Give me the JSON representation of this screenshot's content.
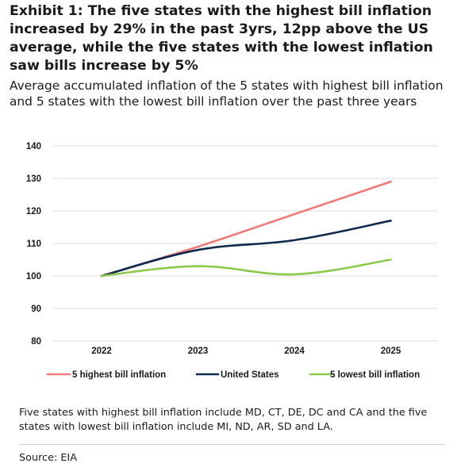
{
  "title": "Exhibit 1: The five states with the highest bill inflation increased by 29% in the past 3yrs, 12pp above the US average, while the five states with the lowest inflation saw bills increase by 5%",
  "subtitle": "Average accumulated inflation of the 5 states with highest bill inflation and 5 states with the lowest bill inflation over the past three years",
  "note": "Five states with highest bill inflation include MD, CT, DE, DC and CA and the five states with lowest bill inflation include MI, ND, AR, SD and LA.",
  "source": "Source: EIA",
  "chart_data": {
    "type": "line",
    "x": [
      "2022",
      "2023",
      "2024",
      "2025"
    ],
    "x_tick_labels": [
      "2022",
      "2023",
      "2024",
      "2025"
    ],
    "ylim": [
      80,
      140
    ],
    "y_ticks": [
      80,
      90,
      100,
      110,
      120,
      130,
      140
    ],
    "y_tick_labels": [
      "80",
      "90",
      "100",
      "110",
      "120",
      "130",
      "140"
    ],
    "grid": "horizontal",
    "legend_position": "bottom",
    "series": [
      {
        "name": "5 highest bill inflation",
        "color": "#f07a7a",
        "values": [
          100,
          109,
          119,
          129
        ]
      },
      {
        "name": "United States",
        "color": "#0f2a4d",
        "values": [
          100,
          108,
          111,
          117
        ]
      },
      {
        "name": "5 lowest bill inflation",
        "color": "#8ac94a",
        "values": [
          100,
          103,
          100.5,
          105
        ]
      }
    ]
  }
}
